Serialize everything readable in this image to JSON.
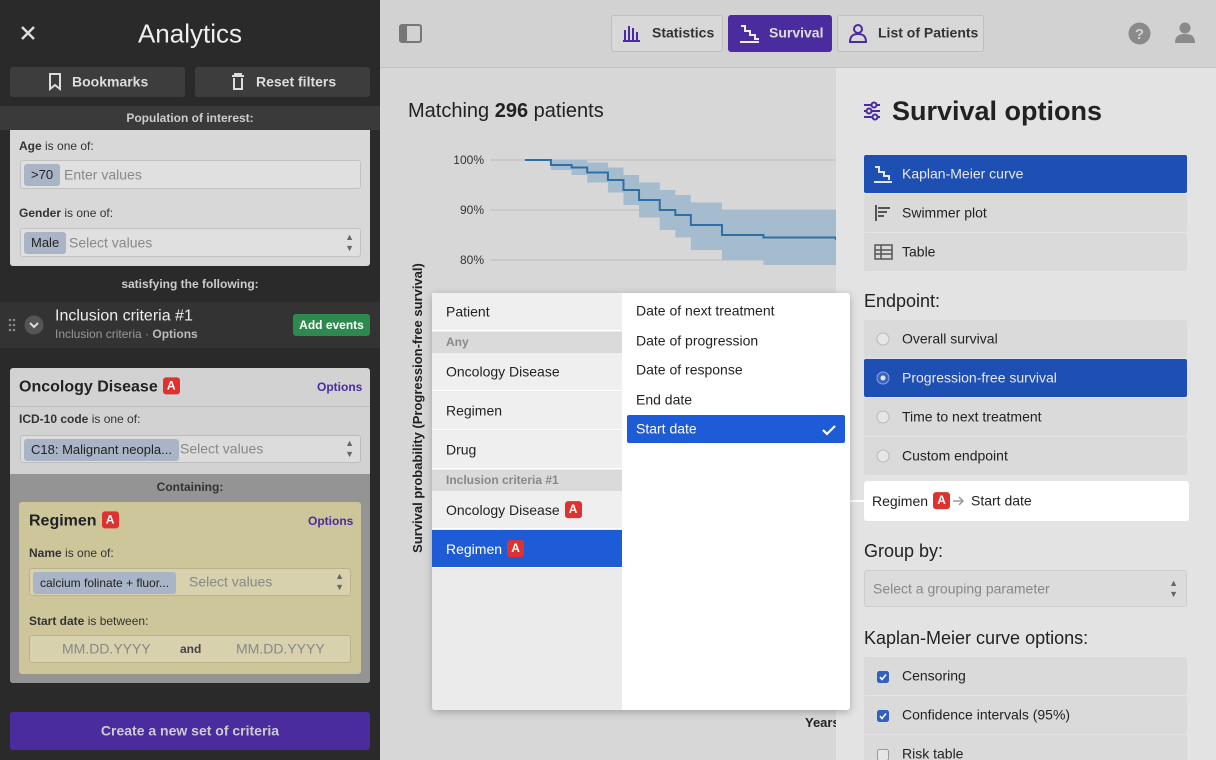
{
  "sidebar": {
    "title": "Analytics",
    "buttons": [
      "Bookmarks",
      "Reset filters"
    ],
    "population_label": "Population of interest:",
    "filters": [
      {
        "label": "Age",
        "operator": "is one of:",
        "chip": ">70",
        "placeholder": "Enter values"
      },
      {
        "label": "Gender",
        "operator": "is one of:",
        "chip": "Male",
        "placeholder": "Select values"
      }
    ],
    "satisfying_label": "satisfying the following:",
    "criteria": {
      "title": "Inclusion criteria #1",
      "subtitle": "Inclusion criteria",
      "options": "Options",
      "add_button": "Add events",
      "event": {
        "title": "Oncology Disease",
        "badge": "A",
        "options": "Options",
        "field": {
          "label": "ICD-10 code",
          "operator": "is one of:",
          "chip": "C18: Malignant neopla...",
          "placeholder": "Select values"
        },
        "containing_label": "Containing:",
        "child": {
          "title": "Regimen",
          "badge": "A",
          "options": "Options",
          "name_field": {
            "label": "Name",
            "operator": "is one of:",
            "chip": "calcium folinate + fluor...",
            "placeholder": "Select values"
          },
          "date_field": {
            "label": "Start date",
            "operator": "is between:",
            "from": "MM.DD.YYYY",
            "and": "and",
            "to": "MM.DD.YYYY"
          }
        }
      }
    },
    "create_button": "Create a new set of criteria"
  },
  "tabs": [
    {
      "label": "Statistics",
      "active": false
    },
    {
      "label": "Survival",
      "active": true
    },
    {
      "label": "List of Patients",
      "active": false
    }
  ],
  "main": {
    "matching_prefix": "Matching",
    "matching_count": 296,
    "matching_suffix": "patients"
  },
  "survival_chart": {
    "type": "line",
    "y_label": "Survival probability (Progression-free survival)",
    "x_label": "Years",
    "ylim": [
      0,
      100
    ],
    "yticks": [
      {
        "value": 100,
        "label": "100%"
      },
      {
        "value": 90,
        "label": "90%"
      },
      {
        "value": 80,
        "label": "80%"
      }
    ],
    "xlim": [
      0,
      3
    ],
    "grid": true,
    "color": "#2f6fa6",
    "band_color": "#a4bccd",
    "x": [
      0,
      0.25,
      0.45,
      0.6,
      0.8,
      0.95,
      1.1,
      1.3,
      1.45,
      1.6,
      1.9,
      2.3,
      3
    ],
    "values": [
      100,
      99,
      98.5,
      97.5,
      96,
      94,
      92,
      90,
      89,
      87,
      85,
      84.5,
      84
    ],
    "ci_lower": [
      100,
      98,
      97,
      95.5,
      93.5,
      91,
      88.5,
      86,
      84.5,
      82,
      80,
      79,
      78
    ],
    "ci_upper": [
      100,
      100,
      100,
      99.5,
      98.5,
      97,
      95.5,
      94,
      93,
      91.5,
      90,
      90,
      90
    ]
  },
  "dropdown": {
    "groups": [
      {
        "items": [
          {
            "label": "Patient"
          }
        ]
      },
      {
        "header": "Any",
        "items": [
          {
            "label": "Oncology Disease"
          },
          {
            "label": "Regimen"
          },
          {
            "label": "Drug"
          }
        ]
      },
      {
        "header": "Inclusion criteria #1",
        "items": [
          {
            "label": "Oncology Disease",
            "badge": "A"
          },
          {
            "label": "Regimen",
            "badge": "A",
            "selected": true
          }
        ]
      }
    ],
    "fields": [
      {
        "label": "Date of next treatment"
      },
      {
        "label": "Date of progression"
      },
      {
        "label": "Date of response"
      },
      {
        "label": "End date"
      },
      {
        "label": "Start date",
        "selected": true
      }
    ]
  },
  "options_panel": {
    "title": "Survival options",
    "views": [
      {
        "label": "Kaplan-Meier curve",
        "selected": true
      },
      {
        "label": "Swimmer plot"
      },
      {
        "label": "Table"
      }
    ],
    "endpoint_label": "Endpoint:",
    "endpoints": [
      {
        "label": "Overall survival"
      },
      {
        "label": "Progression-free survival",
        "selected": true
      },
      {
        "label": "Time to next treatment"
      },
      {
        "label": "Custom endpoint"
      }
    ],
    "selected_event": {
      "event": "Regimen",
      "badge": "A",
      "field": "Start date"
    },
    "group_by_label": "Group by:",
    "group_by_placeholder": "Select a grouping parameter",
    "km_options_label": "Kaplan-Meier curve options:",
    "km_options": [
      {
        "label": "Censoring",
        "checked": true
      },
      {
        "label": "Confidence intervals (95%)",
        "checked": true
      },
      {
        "label": "Risk table",
        "checked": false
      }
    ]
  }
}
